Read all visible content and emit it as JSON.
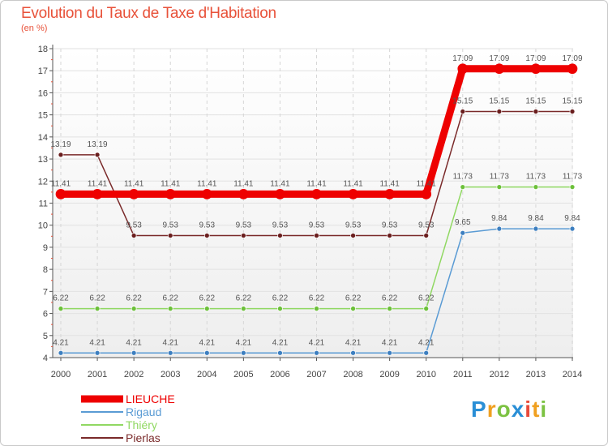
{
  "header": {
    "title": "Evolution du Taux de Taxe d'Habitation",
    "subtitle": "(en %)"
  },
  "brand": {
    "letters": [
      "P",
      "r",
      "o",
      "x",
      "i",
      "t",
      "i"
    ]
  },
  "chart_data": {
    "type": "line",
    "title": "Evolution du Taux de Taxe d'Habitation",
    "subtitle": "(en %)",
    "xlabel": "",
    "ylabel": "",
    "ylim": [
      4,
      18
    ],
    "yticks": [
      4,
      5,
      6,
      7,
      8,
      9,
      10,
      11,
      12,
      13,
      14,
      15,
      16,
      17,
      18
    ],
    "x": [
      "2000",
      "2001",
      "2002",
      "2003",
      "2004",
      "2005",
      "2006",
      "2007",
      "2008",
      "2009",
      "2010",
      "2011",
      "2012",
      "2013",
      "2014"
    ],
    "legend_position": "bottom-left",
    "series": [
      {
        "name": "LIEUCHE",
        "color": "#ee0000",
        "emphasis": true,
        "values": [
          11.41,
          11.41,
          11.41,
          11.41,
          11.41,
          11.41,
          11.41,
          11.41,
          11.41,
          11.41,
          11.41,
          17.09,
          17.09,
          17.09,
          17.09
        ],
        "labels": [
          "11.41",
          "11.41",
          "11.41",
          "11.41",
          "11.41",
          "11.41",
          "11.41",
          "11.41",
          "11.41",
          "11.41",
          "11.41",
          "17.09",
          "17.09",
          "17.09",
          "17.09"
        ]
      },
      {
        "name": "Rigaud",
        "color": "#5a9bd4",
        "marker_color": "#3d7fc0",
        "values": [
          4.21,
          4.21,
          4.21,
          4.21,
          4.21,
          4.21,
          4.21,
          4.21,
          4.21,
          4.21,
          4.21,
          9.65,
          9.84,
          9.84,
          9.84
        ],
        "labels": [
          "4.21",
          "4.21",
          "4.21",
          "4.21",
          "4.21",
          "4.21",
          "4.21",
          "4.21",
          "4.21",
          "4.21",
          "4.21",
          "9.65",
          "9.84",
          "9.84",
          "9.84"
        ]
      },
      {
        "name": "Thiéry",
        "color": "#90d862",
        "marker_color": "#6cc03a",
        "values": [
          6.22,
          6.22,
          6.22,
          6.22,
          6.22,
          6.22,
          6.22,
          6.22,
          6.22,
          6.22,
          6.22,
          11.73,
          11.73,
          11.73,
          11.73
        ],
        "labels": [
          "6.22",
          "6.22",
          "6.22",
          "6.22",
          "6.22",
          "6.22",
          "6.22",
          "6.22",
          "6.22",
          "6.22",
          "6.22",
          "11.73",
          "11.73",
          "11.73",
          "11.73"
        ]
      },
      {
        "name": "Pierlas",
        "color": "#7a2a2a",
        "marker_color": "#6a1e1e",
        "values": [
          13.19,
          13.19,
          9.53,
          9.53,
          9.53,
          9.53,
          9.53,
          9.53,
          9.53,
          9.53,
          9.53,
          15.15,
          15.15,
          15.15,
          15.15
        ],
        "labels": [
          "13.19",
          "13.19",
          "9.53",
          "9.53",
          "9.53",
          "9.53",
          "9.53",
          "9.53",
          "9.53",
          "9.53",
          "9.53",
          "15.15",
          "15.15",
          "15.15",
          "15.15"
        ]
      }
    ]
  }
}
